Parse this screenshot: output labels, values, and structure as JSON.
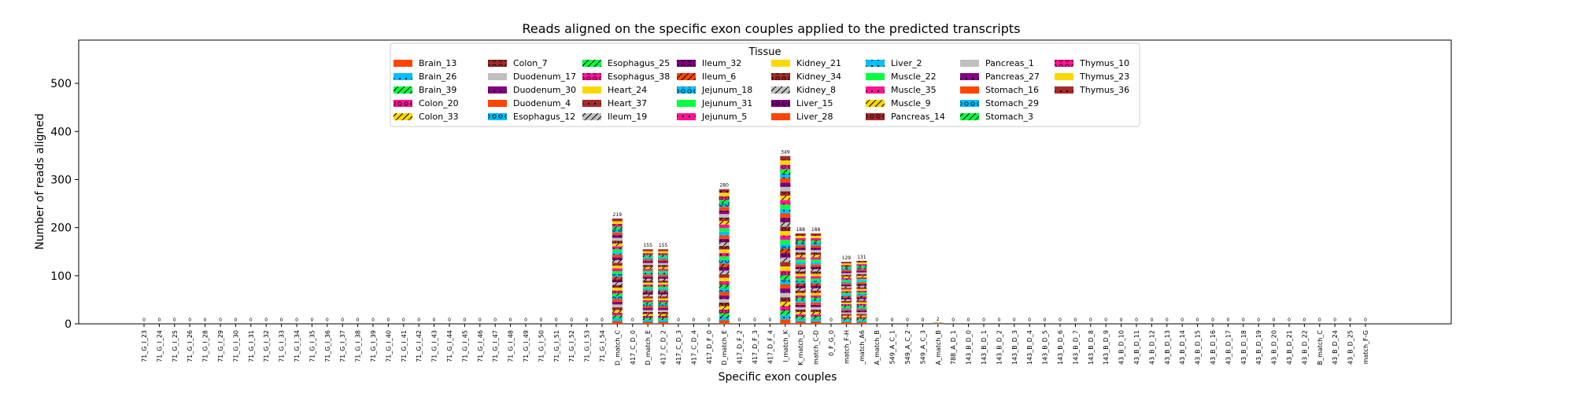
{
  "chart_data": {
    "type": "bar",
    "stacked": true,
    "title": "Reads aligned on the specific exon couples applied to the predicted transcripts",
    "xlabel": "Specific exon couples",
    "ylabel": "Number of reads aligned",
    "ylim": [
      0,
      590
    ],
    "yticks": [
      0,
      100,
      200,
      300,
      400,
      500
    ],
    "grid": false,
    "legend": {
      "title": "Tissue",
      "position": "top-center",
      "columns": 8,
      "entries": [
        {
          "name": "Brain_13",
          "color": "#ff4500",
          "hatch": "none"
        },
        {
          "name": "Brain_26",
          "color": "#00bfff",
          "hatch": "dot"
        },
        {
          "name": "Brain_39",
          "color": "#00ff40",
          "hatch": "slash"
        },
        {
          "name": "Colon_20",
          "color": "#ff1493",
          "hatch": "ring"
        },
        {
          "name": "Colon_33",
          "color": "#ffd700",
          "hatch": "slash"
        },
        {
          "name": "Colon_7",
          "color": "#a52a2a",
          "hatch": "ring"
        },
        {
          "name": "Duodenum_17",
          "color": "#c0c0c0",
          "hatch": "none"
        },
        {
          "name": "Duodenum_30",
          "color": "#800080",
          "hatch": "dot"
        },
        {
          "name": "Duodenum_4",
          "color": "#ff4500",
          "hatch": "none"
        },
        {
          "name": "Esophagus_12",
          "color": "#00bfff",
          "hatch": "ring"
        },
        {
          "name": "Esophagus_25",
          "color": "#00ff40",
          "hatch": "slash"
        },
        {
          "name": "Esophagus_38",
          "color": "#ff1493",
          "hatch": "ring"
        },
        {
          "name": "Heart_24",
          "color": "#ffd700",
          "hatch": "none"
        },
        {
          "name": "Heart_37",
          "color": "#a52a2a",
          "hatch": "dot"
        },
        {
          "name": "Ileum_19",
          "color": "#c0c0c0",
          "hatch": "slash"
        },
        {
          "name": "Ileum_32",
          "color": "#800080",
          "hatch": "ring"
        },
        {
          "name": "Ileum_6",
          "color": "#ff4500",
          "hatch": "slash"
        },
        {
          "name": "Jejunum_18",
          "color": "#00bfff",
          "hatch": "ring"
        },
        {
          "name": "Jejunum_31",
          "color": "#00ff40",
          "hatch": "none"
        },
        {
          "name": "Jejunum_5",
          "color": "#ff1493",
          "hatch": "dot"
        },
        {
          "name": "Kidney_21",
          "color": "#ffd700",
          "hatch": "none"
        },
        {
          "name": "Kidney_34",
          "color": "#a52a2a",
          "hatch": "ring"
        },
        {
          "name": "Kidney_8",
          "color": "#c0c0c0",
          "hatch": "slash"
        },
        {
          "name": "Liver_15",
          "color": "#800080",
          "hatch": "ring"
        },
        {
          "name": "Liver_28",
          "color": "#ff4500",
          "hatch": "none"
        },
        {
          "name": "Liver_2",
          "color": "#00bfff",
          "hatch": "dot"
        },
        {
          "name": "Muscle_22",
          "color": "#00ff40",
          "hatch": "none"
        },
        {
          "name": "Muscle_35",
          "color": "#ff1493",
          "hatch": "dot"
        },
        {
          "name": "Muscle_9",
          "color": "#ffd700",
          "hatch": "slash"
        },
        {
          "name": "Pancreas_14",
          "color": "#a52a2a",
          "hatch": "ring"
        },
        {
          "name": "Pancreas_1",
          "color": "#c0c0c0",
          "hatch": "none"
        },
        {
          "name": "Pancreas_27",
          "color": "#800080",
          "hatch": "dot"
        },
        {
          "name": "Stomach_16",
          "color": "#ff4500",
          "hatch": "none"
        },
        {
          "name": "Stomach_29",
          "color": "#00bfff",
          "hatch": "ring"
        },
        {
          "name": "Stomach_3",
          "color": "#00ff40",
          "hatch": "slash"
        },
        {
          "name": "Thymus_10",
          "color": "#ff1493",
          "hatch": "ring"
        },
        {
          "name": "Thymus_23",
          "color": "#ffd700",
          "hatch": "none"
        },
        {
          "name": "Thymus_36",
          "color": "#a52a2a",
          "hatch": "dot"
        }
      ]
    },
    "categories": [
      "71_G_I_23",
      "71_G_I_24",
      "71_G_I_25",
      "71_G_I_26",
      "71_G_I_28",
      "71_G_I_29",
      "71_G_I_30",
      "71_G_I_31",
      "71_G_I_32",
      "71_G_I_33",
      "71_G_I_34",
      "71_G_I_35",
      "71_G_I_36",
      "71_G_I_37",
      "71_G_I_38",
      "71_G_I_39",
      "71_G_I_40",
      "71_G_I_41",
      "71_G_I_42",
      "71_G_I_43",
      "71_G_I_44",
      "71_G_I_45",
      "71_G_I_46",
      "71_G_I_47",
      "71_G_I_48",
      "71_G_I_49",
      "71_G_I_50",
      "71_G_I_51",
      "71_G_I_52",
      "71_G_I_53",
      "71_G_I_54",
      "D_match_C",
      "417_C_D_0",
      "D_match_E",
      "417_C_D_2",
      "417_C_D_3",
      "417_C_D_4",
      "417_D_F_0",
      "D_match_E",
      "417_D_F_2",
      "417_D_F_3",
      "417_D_F_4",
      "I_match_K",
      "K_match_D",
      "match_C-D",
      "0_F_G_0",
      "match_F-H",
      "_match_A6",
      "A_match_B",
      "549_A_C_1",
      "549_A_C_2",
      "549_A_C_3",
      "A_match_B",
      "788_A_D_1",
      "143_B_D_0",
      "143_B_D_1",
      "143_B_D_2",
      "143_B_D_3",
      "143_B_D_4",
      "143_B_D_5",
      "143_B_D_6",
      "143_B_D_7",
      "143_B_D_8",
      "143_B_D_9",
      "43_B_D_10",
      "43_B_D_11",
      "43_B_D_12",
      "43_B_D_13",
      "43_B_D_14",
      "43_B_D_15",
      "43_B_D_16",
      "43_B_D_17",
      "43_B_D_18",
      "43_B_D_19",
      "43_B_D_20",
      "43_B_D_21",
      "43_B_D_22",
      "B_match_C",
      "43_B_D_24",
      "43_B_D_25",
      "match_F-G"
    ],
    "totals": [
      0,
      0,
      0,
      0,
      0,
      0,
      0,
      0,
      0,
      0,
      0,
      0,
      0,
      0,
      0,
      0,
      0,
      0,
      0,
      0,
      0,
      0,
      0,
      0,
      0,
      0,
      0,
      0,
      0,
      0,
      0,
      219,
      0,
      155,
      155,
      0,
      0,
      0,
      280,
      0,
      0,
      0,
      349,
      188,
      188,
      0,
      129,
      131,
      0,
      0,
      0,
      0,
      2,
      0,
      0,
      0,
      0,
      0,
      0,
      0,
      0,
      0,
      0,
      0,
      0,
      0,
      0,
      0,
      0,
      0,
      0,
      0,
      0,
      0,
      0,
      0,
      0,
      0,
      0,
      0,
      0
    ]
  }
}
